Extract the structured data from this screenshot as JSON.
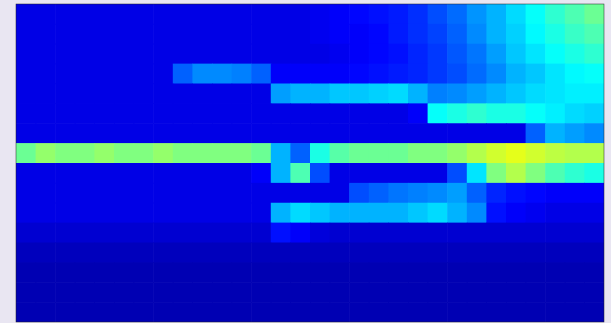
{
  "chart_data": {
    "type": "heatmap",
    "tick_labels": false,
    "zlim": [
      0,
      1
    ],
    "cells": [
      [
        0.1,
        0.1,
        0.1,
        0.1,
        0.1,
        0.1,
        0.1,
        0.1,
        0.1,
        0.1,
        0.1,
        0.1,
        0.1,
        0.1,
        0.1,
        0.11,
        0.12,
        0.13,
        0.14,
        0.15,
        0.17,
        0.2,
        0.23,
        0.27,
        0.3,
        0.34,
        0.38,
        0.42,
        0.45,
        0.48
      ],
      [
        0.1,
        0.1,
        0.1,
        0.1,
        0.1,
        0.1,
        0.1,
        0.1,
        0.1,
        0.1,
        0.1,
        0.1,
        0.1,
        0.1,
        0.1,
        0.11,
        0.12,
        0.12,
        0.13,
        0.15,
        0.17,
        0.19,
        0.22,
        0.26,
        0.3,
        0.33,
        0.37,
        0.4,
        0.43,
        0.45
      ],
      [
        0.1,
        0.1,
        0.1,
        0.1,
        0.1,
        0.1,
        0.1,
        0.1,
        0.1,
        0.1,
        0.1,
        0.1,
        0.1,
        0.1,
        0.1,
        0.1,
        0.11,
        0.12,
        0.13,
        0.14,
        0.16,
        0.18,
        0.21,
        0.24,
        0.28,
        0.32,
        0.35,
        0.38,
        0.4,
        0.42
      ],
      [
        0.1,
        0.1,
        0.1,
        0.1,
        0.1,
        0.1,
        0.1,
        0.1,
        0.22,
        0.26,
        0.26,
        0.25,
        0.22,
        0.12,
        0.12,
        0.12,
        0.12,
        0.13,
        0.14,
        0.15,
        0.16,
        0.18,
        0.2,
        0.23,
        0.26,
        0.3,
        0.32,
        0.35,
        0.37,
        0.38
      ],
      [
        0.1,
        0.1,
        0.1,
        0.1,
        0.1,
        0.1,
        0.1,
        0.1,
        0.1,
        0.1,
        0.1,
        0.1,
        0.1,
        0.28,
        0.3,
        0.3,
        0.32,
        0.32,
        0.33,
        0.34,
        0.3,
        0.25,
        0.26,
        0.28,
        0.3,
        0.32,
        0.34,
        0.35,
        0.36,
        0.36
      ],
      [
        0.1,
        0.1,
        0.1,
        0.1,
        0.1,
        0.1,
        0.1,
        0.1,
        0.1,
        0.1,
        0.1,
        0.1,
        0.1,
        0.1,
        0.1,
        0.1,
        0.1,
        0.1,
        0.1,
        0.1,
        0.12,
        0.38,
        0.4,
        0.42,
        0.4,
        0.4,
        0.38,
        0.36,
        0.34,
        0.33
      ],
      [
        0.1,
        0.1,
        0.1,
        0.1,
        0.1,
        0.1,
        0.1,
        0.1,
        0.1,
        0.1,
        0.1,
        0.1,
        0.1,
        0.1,
        0.1,
        0.1,
        0.1,
        0.1,
        0.1,
        0.1,
        0.1,
        0.1,
        0.1,
        0.1,
        0.1,
        0.1,
        0.22,
        0.3,
        0.28,
        0.26
      ],
      [
        0.48,
        0.52,
        0.5,
        0.5,
        0.52,
        0.5,
        0.5,
        0.52,
        0.5,
        0.5,
        0.5,
        0.5,
        0.48,
        0.3,
        0.22,
        0.4,
        0.46,
        0.48,
        0.48,
        0.48,
        0.5,
        0.5,
        0.52,
        0.55,
        0.58,
        0.6,
        0.58,
        0.56,
        0.55,
        0.55
      ],
      [
        0.1,
        0.1,
        0.1,
        0.1,
        0.1,
        0.1,
        0.1,
        0.1,
        0.1,
        0.1,
        0.1,
        0.1,
        0.12,
        0.3,
        0.45,
        0.2,
        0.1,
        0.1,
        0.1,
        0.1,
        0.1,
        0.1,
        0.2,
        0.35,
        0.5,
        0.55,
        0.5,
        0.45,
        0.42,
        0.4
      ],
      [
        0.1,
        0.1,
        0.1,
        0.1,
        0.1,
        0.1,
        0.1,
        0.1,
        0.1,
        0.1,
        0.1,
        0.1,
        0.1,
        0.1,
        0.1,
        0.1,
        0.1,
        0.2,
        0.22,
        0.24,
        0.25,
        0.26,
        0.28,
        0.22,
        0.16,
        0.14,
        0.13,
        0.12,
        0.12,
        0.12
      ],
      [
        0.1,
        0.1,
        0.1,
        0.1,
        0.1,
        0.1,
        0.1,
        0.1,
        0.1,
        0.1,
        0.1,
        0.1,
        0.1,
        0.3,
        0.34,
        0.32,
        0.3,
        0.3,
        0.3,
        0.3,
        0.32,
        0.34,
        0.3,
        0.26,
        0.14,
        0.12,
        0.11,
        0.1,
        0.1,
        0.1
      ],
      [
        0.08,
        0.08,
        0.08,
        0.08,
        0.08,
        0.08,
        0.08,
        0.08,
        0.08,
        0.08,
        0.08,
        0.08,
        0.08,
        0.14,
        0.12,
        0.09,
        0.08,
        0.08,
        0.08,
        0.08,
        0.08,
        0.08,
        0.08,
        0.08,
        0.08,
        0.08,
        0.08,
        0.08,
        0.08,
        0.08
      ],
      [
        0.06,
        0.06,
        0.06,
        0.06,
        0.06,
        0.06,
        0.06,
        0.06,
        0.06,
        0.06,
        0.06,
        0.06,
        0.06,
        0.06,
        0.06,
        0.06,
        0.06,
        0.06,
        0.06,
        0.06,
        0.06,
        0.06,
        0.06,
        0.06,
        0.06,
        0.06,
        0.06,
        0.06,
        0.06,
        0.06
      ],
      [
        0.05,
        0.05,
        0.05,
        0.05,
        0.05,
        0.05,
        0.05,
        0.05,
        0.05,
        0.05,
        0.05,
        0.05,
        0.05,
        0.05,
        0.05,
        0.05,
        0.05,
        0.05,
        0.05,
        0.05,
        0.05,
        0.05,
        0.05,
        0.05,
        0.05,
        0.05,
        0.05,
        0.05,
        0.05,
        0.05
      ],
      [
        0.05,
        0.05,
        0.05,
        0.05,
        0.05,
        0.05,
        0.05,
        0.05,
        0.05,
        0.05,
        0.05,
        0.05,
        0.05,
        0.05,
        0.05,
        0.05,
        0.05,
        0.05,
        0.05,
        0.05,
        0.05,
        0.05,
        0.05,
        0.05,
        0.05,
        0.05,
        0.05,
        0.05,
        0.05,
        0.05
      ],
      [
        0.05,
        0.05,
        0.05,
        0.05,
        0.05,
        0.05,
        0.05,
        0.05,
        0.05,
        0.05,
        0.05,
        0.05,
        0.05,
        0.05,
        0.05,
        0.05,
        0.05,
        0.05,
        0.05,
        0.05,
        0.05,
        0.05,
        0.05,
        0.05,
        0.05,
        0.05,
        0.05,
        0.05,
        0.05,
        0.05
      ]
    ]
  }
}
